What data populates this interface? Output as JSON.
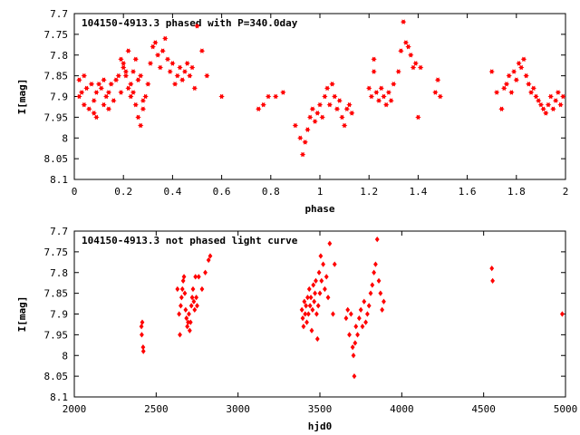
{
  "chart_data": [
    {
      "type": "scatter",
      "title": "104150-4913.3 phased with P=340.0day",
      "xlabel": "phase",
      "ylabel": "I[mag]",
      "xlim": [
        0,
        2
      ],
      "ylim": [
        8.1,
        7.7
      ],
      "xticks": [
        "0",
        "0.2",
        "0.4",
        "0.6",
        "0.8",
        "1",
        "1.2",
        "1.4",
        "1.6",
        "1.8",
        "2"
      ],
      "yticks": [
        "7.7",
        "7.75",
        "7.8",
        "7.85",
        "7.9",
        "7.95",
        "8",
        "8.05",
        "8.1"
      ],
      "grid": false,
      "color": "#ff0000",
      "marker": "star",
      "points": [
        [
          0.02,
          7.9
        ],
        [
          0.02,
          7.86
        ],
        [
          0.03,
          7.89
        ],
        [
          0.04,
          7.85
        ],
        [
          0.04,
          7.92
        ],
        [
          0.05,
          7.88
        ],
        [
          0.06,
          7.93
        ],
        [
          0.07,
          7.87
        ],
        [
          0.08,
          7.91
        ],
        [
          0.08,
          7.94
        ],
        [
          0.09,
          7.95
        ],
        [
          0.09,
          7.89
        ],
        [
          0.1,
          7.87
        ],
        [
          0.11,
          7.88
        ],
        [
          0.12,
          7.86
        ],
        [
          0.12,
          7.92
        ],
        [
          0.13,
          7.9
        ],
        [
          0.14,
          7.93
        ],
        [
          0.14,
          7.89
        ],
        [
          0.15,
          7.87
        ],
        [
          0.16,
          7.91
        ],
        [
          0.17,
          7.86
        ],
        [
          0.18,
          7.85
        ],
        [
          0.19,
          7.89
        ],
        [
          0.2,
          7.82
        ],
        [
          0.21,
          7.84
        ],
        [
          0.22,
          7.88
        ],
        [
          0.23,
          7.9
        ],
        [
          0.24,
          7.84
        ],
        [
          0.25,
          7.81
        ],
        [
          0.26,
          7.86
        ],
        [
          0.27,
          7.85
        ],
        [
          0.28,
          7.91
        ],
        [
          0.28,
          7.93
        ],
        [
          0.29,
          7.9
        ],
        [
          0.3,
          7.87
        ],
        [
          0.19,
          7.81
        ],
        [
          0.2,
          7.83
        ],
        [
          0.21,
          7.85
        ],
        [
          0.22,
          7.79
        ],
        [
          0.23,
          7.87
        ],
        [
          0.24,
          7.89
        ],
        [
          0.25,
          7.92
        ],
        [
          0.26,
          7.95
        ],
        [
          0.27,
          7.97
        ],
        [
          0.31,
          7.82
        ],
        [
          0.32,
          7.78
        ],
        [
          0.33,
          7.77
        ],
        [
          0.34,
          7.8
        ],
        [
          0.35,
          7.83
        ],
        [
          0.36,
          7.79
        ],
        [
          0.37,
          7.76
        ],
        [
          0.38,
          7.81
        ],
        [
          0.39,
          7.84
        ],
        [
          0.4,
          7.82
        ],
        [
          0.41,
          7.87
        ],
        [
          0.42,
          7.85
        ],
        [
          0.43,
          7.83
        ],
        [
          0.44,
          7.86
        ],
        [
          0.45,
          7.84
        ],
        [
          0.46,
          7.82
        ],
        [
          0.47,
          7.85
        ],
        [
          0.48,
          7.83
        ],
        [
          0.49,
          7.88
        ],
        [
          0.5,
          7.73
        ],
        [
          0.52,
          7.79
        ],
        [
          0.54,
          7.85
        ],
        [
          0.6,
          7.9
        ],
        [
          0.75,
          7.93
        ],
        [
          0.77,
          7.92
        ],
        [
          0.79,
          7.9
        ],
        [
          0.82,
          7.9
        ],
        [
          0.85,
          7.89
        ],
        [
          0.9,
          7.97
        ],
        [
          0.92,
          8.0
        ],
        [
          0.93,
          8.04
        ],
        [
          0.94,
          8.01
        ],
        [
          0.95,
          7.98
        ],
        [
          0.96,
          7.95
        ],
        [
          0.97,
          7.93
        ],
        [
          0.98,
          7.96
        ],
        [
          0.99,
          7.94
        ],
        [
          1.0,
          7.92
        ],
        [
          1.01,
          7.95
        ],
        [
          1.02,
          7.9
        ],
        [
          1.03,
          7.88
        ],
        [
          1.04,
          7.92
        ],
        [
          1.05,
          7.87
        ],
        [
          1.06,
          7.9
        ],
        [
          1.07,
          7.93
        ],
        [
          1.08,
          7.91
        ],
        [
          1.09,
          7.95
        ],
        [
          1.1,
          7.97
        ],
        [
          1.11,
          7.93
        ],
        [
          1.12,
          7.92
        ],
        [
          1.13,
          7.94
        ],
        [
          1.2,
          7.88
        ],
        [
          1.21,
          7.9
        ],
        [
          1.22,
          7.84
        ],
        [
          1.22,
          7.81
        ],
        [
          1.23,
          7.89
        ],
        [
          1.24,
          7.91
        ],
        [
          1.25,
          7.88
        ],
        [
          1.26,
          7.9
        ],
        [
          1.27,
          7.92
        ],
        [
          1.28,
          7.89
        ],
        [
          1.29,
          7.91
        ],
        [
          1.3,
          7.87
        ],
        [
          1.32,
          7.84
        ],
        [
          1.33,
          7.79
        ],
        [
          1.34,
          7.72
        ],
        [
          1.35,
          7.77
        ],
        [
          1.36,
          7.78
        ],
        [
          1.37,
          7.8
        ],
        [
          1.38,
          7.83
        ],
        [
          1.39,
          7.82
        ],
        [
          1.4,
          7.95
        ],
        [
          1.41,
          7.83
        ],
        [
          1.47,
          7.89
        ],
        [
          1.48,
          7.86
        ],
        [
          1.49,
          7.9
        ],
        [
          1.7,
          7.84
        ],
        [
          1.72,
          7.89
        ],
        [
          1.74,
          7.93
        ],
        [
          1.75,
          7.88
        ],
        [
          1.76,
          7.87
        ],
        [
          1.77,
          7.85
        ],
        [
          1.78,
          7.89
        ],
        [
          1.79,
          7.84
        ],
        [
          1.8,
          7.86
        ],
        [
          1.81,
          7.82
        ],
        [
          1.82,
          7.83
        ],
        [
          1.83,
          7.81
        ],
        [
          1.84,
          7.85
        ],
        [
          1.85,
          7.87
        ],
        [
          1.86,
          7.89
        ],
        [
          1.87,
          7.88
        ],
        [
          1.88,
          7.9
        ],
        [
          1.89,
          7.91
        ],
        [
          1.9,
          7.92
        ],
        [
          1.91,
          7.93
        ],
        [
          1.92,
          7.94
        ],
        [
          1.93,
          7.92
        ],
        [
          1.94,
          7.9
        ],
        [
          1.95,
          7.93
        ],
        [
          1.96,
          7.91
        ],
        [
          1.97,
          7.89
        ],
        [
          1.98,
          7.92
        ],
        [
          1.99,
          7.9
        ]
      ]
    },
    {
      "type": "scatter",
      "title": "104150-4913.3 not phased light curve",
      "xlabel": "hjd0",
      "ylabel": "I[mag]",
      "xlim": [
        2000,
        5000
      ],
      "ylim": [
        8.1,
        7.7
      ],
      "xticks": [
        "2000",
        "2500",
        "3000",
        "3500",
        "4000",
        "4500",
        "5000"
      ],
      "yticks": [
        "7.7",
        "7.75",
        "7.8",
        "7.85",
        "7.9",
        "7.95",
        "8",
        "8.05",
        "8.1"
      ],
      "grid": false,
      "color": "#ff0000",
      "marker": "diamond",
      "points": [
        [
          2410,
          7.93
        ],
        [
          2412,
          7.95
        ],
        [
          2415,
          7.92
        ],
        [
          2420,
          7.98
        ],
        [
          2422,
          7.99
        ],
        [
          2630,
          7.84
        ],
        [
          2640,
          7.9
        ],
        [
          2645,
          7.95
        ],
        [
          2650,
          7.88
        ],
        [
          2655,
          7.86
        ],
        [
          2660,
          7.84
        ],
        [
          2665,
          7.82
        ],
        [
          2670,
          7.81
        ],
        [
          2675,
          7.85
        ],
        [
          2680,
          7.89
        ],
        [
          2685,
          7.91
        ],
        [
          2690,
          7.93
        ],
        [
          2695,
          7.92
        ],
        [
          2700,
          7.9
        ],
        [
          2705,
          7.94
        ],
        [
          2710,
          7.92
        ],
        [
          2715,
          7.88
        ],
        [
          2720,
          7.86
        ],
        [
          2725,
          7.84
        ],
        [
          2730,
          7.87
        ],
        [
          2735,
          7.89
        ],
        [
          2740,
          7.81
        ],
        [
          2745,
          7.86
        ],
        [
          2750,
          7.88
        ],
        [
          2760,
          7.81
        ],
        [
          2780,
          7.84
        ],
        [
          2800,
          7.8
        ],
        [
          2820,
          7.77
        ],
        [
          2830,
          7.76
        ],
        [
          3390,
          7.89
        ],
        [
          3395,
          7.91
        ],
        [
          3400,
          7.93
        ],
        [
          3405,
          7.87
        ],
        [
          3410,
          7.9
        ],
        [
          3415,
          7.88
        ],
        [
          3420,
          7.92
        ],
        [
          3425,
          7.86
        ],
        [
          3430,
          7.9
        ],
        [
          3435,
          7.84
        ],
        [
          3440,
          7.88
        ],
        [
          3445,
          7.86
        ],
        [
          3450,
          7.94
        ],
        [
          3455,
          7.89
        ],
        [
          3460,
          7.83
        ],
        [
          3465,
          7.87
        ],
        [
          3470,
          7.85
        ],
        [
          3475,
          7.82
        ],
        [
          3480,
          7.9
        ],
        [
          3485,
          7.96
        ],
        [
          3490,
          7.88
        ],
        [
          3495,
          7.8
        ],
        [
          3500,
          7.85
        ],
        [
          3505,
          7.76
        ],
        [
          3510,
          7.82
        ],
        [
          3520,
          7.78
        ],
        [
          3530,
          7.84
        ],
        [
          3540,
          7.81
        ],
        [
          3550,
          7.86
        ],
        [
          3560,
          7.73
        ],
        [
          3580,
          7.9
        ],
        [
          3590,
          7.78
        ],
        [
          3660,
          7.91
        ],
        [
          3670,
          7.89
        ],
        [
          3680,
          7.95
        ],
        [
          3690,
          7.9
        ],
        [
          3700,
          7.98
        ],
        [
          3705,
          8.0
        ],
        [
          3710,
          8.05
        ],
        [
          3715,
          7.97
        ],
        [
          3720,
          7.93
        ],
        [
          3730,
          7.95
        ],
        [
          3740,
          7.91
        ],
        [
          3750,
          7.89
        ],
        [
          3760,
          7.93
        ],
        [
          3770,
          7.87
        ],
        [
          3780,
          7.92
        ],
        [
          3790,
          7.9
        ],
        [
          3800,
          7.88
        ],
        [
          3810,
          7.85
        ],
        [
          3820,
          7.83
        ],
        [
          3830,
          7.8
        ],
        [
          3840,
          7.78
        ],
        [
          3850,
          7.72
        ],
        [
          3860,
          7.82
        ],
        [
          3870,
          7.85
        ],
        [
          3880,
          7.89
        ],
        [
          3890,
          7.87
        ],
        [
          4550,
          7.79
        ],
        [
          4555,
          7.82
        ],
        [
          4980,
          7.9
        ]
      ]
    }
  ]
}
